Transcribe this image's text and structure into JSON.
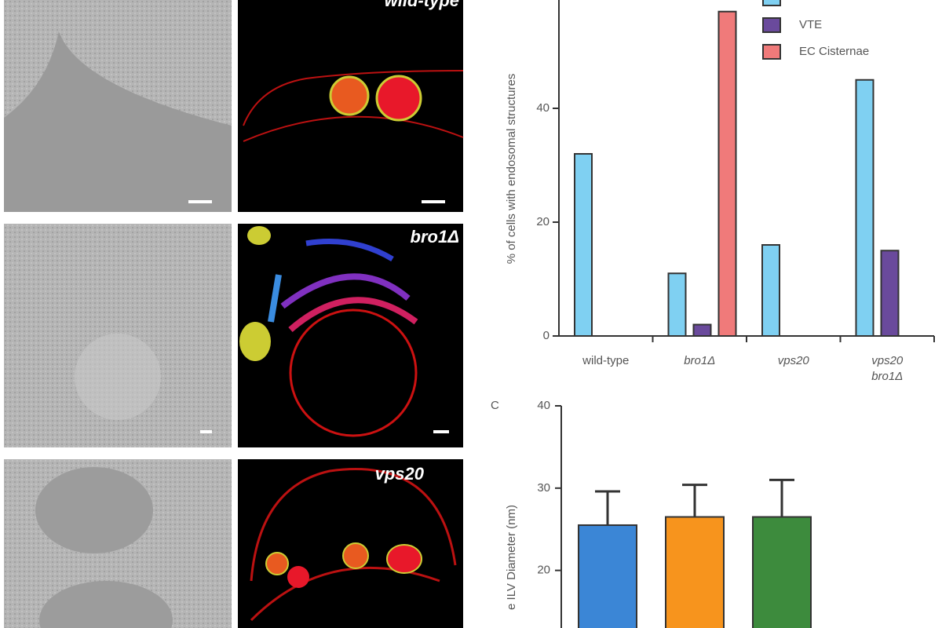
{
  "panel_labels": [
    "wild-type",
    "bro1Δ",
    "vps20"
  ],
  "chart_data": [
    {
      "type": "bar",
      "y_label": "% of cells with endosomal structures",
      "categories": [
        "wild-type",
        "bro1Δ",
        "vps20",
        "vps20\nbro1Δ"
      ],
      "series": [
        {
          "color": "#7fd0f2",
          "values": [
            32,
            11,
            16,
            45
          ]
        },
        {
          "name": "VTE",
          "color": "#6a4a9c",
          "values": [
            0,
            2,
            0,
            15
          ]
        },
        {
          "name": "EC Cisternae",
          "color": "#f07a7a",
          "values": [
            0,
            57,
            0,
            0
          ]
        }
      ],
      "ylim": [
        0,
        60
      ],
      "yticks": [
        0,
        20,
        40
      ]
    },
    {
      "type": "bar",
      "panel_label": "C",
      "y_label": "e ILV Diameter (nm)",
      "categories": [
        null,
        null,
        null
      ],
      "values": [
        25.5,
        26.5,
        26.5
      ],
      "errors": [
        4.1,
        3.9,
        4.5
      ],
      "colors": [
        "#3b86d6",
        "#f7941d",
        "#3d8b3d"
      ],
      "ylim": [
        13,
        40
      ],
      "yticks": [
        20,
        30,
        40
      ]
    }
  ]
}
